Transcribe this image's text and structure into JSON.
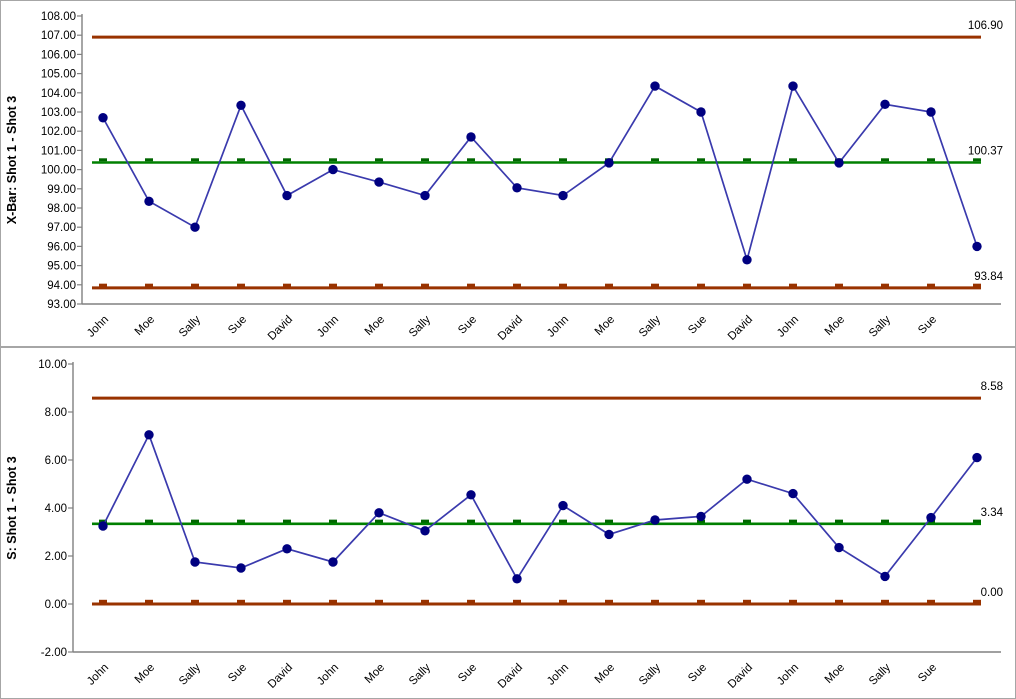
{
  "page": {
    "background": "#ffffff",
    "panel_border_color": "#a6a6a6",
    "colors": {
      "series_line": "#3a3aad",
      "marker": "#000080",
      "limit_line": "#993300",
      "limit_dash": "#993300",
      "center_line": "#008000",
      "center_dash": "#006600",
      "axis": "#808080",
      "text": "#000000"
    }
  },
  "chart_data": [
    {
      "type": "line",
      "name": "xbar-control-chart",
      "title": "X-Bar: Shot 1 - Shot 3",
      "ylabel": "X-Bar: Shot 1 - Shot 3",
      "xlabel": "",
      "legend": "none",
      "grid": false,
      "categories": [
        "John",
        "Moe",
        "Sally",
        "Sue",
        "David",
        "John",
        "Moe",
        "Sally",
        "Sue",
        "David",
        "John",
        "Moe",
        "Sally",
        "Sue",
        "David",
        "John",
        "Moe",
        "Sally",
        "Sue",
        ""
      ],
      "values": [
        102.7,
        98.35,
        97.0,
        103.35,
        98.65,
        100.0,
        99.35,
        98.65,
        101.7,
        99.05,
        98.65,
        100.35,
        104.35,
        103.0,
        95.3,
        104.35,
        100.35,
        103.4,
        103.0,
        96.0
      ],
      "ucl": 106.9,
      "center": 100.37,
      "lcl": 93.84,
      "ucl_label": "106.90",
      "center_label": "100.37",
      "lcl_label": "93.84",
      "ylim": [
        93,
        108
      ],
      "ytick_step": 1,
      "yticks": [
        "108.00",
        "107.00",
        "106.00",
        "105.00",
        "104.00",
        "103.00",
        "102.00",
        "101.00",
        "100.00",
        "99.00",
        "98.00",
        "97.00",
        "96.00",
        "95.00",
        "94.00",
        "93.00"
      ]
    },
    {
      "type": "line",
      "name": "s-control-chart",
      "title": "S: Shot 1 - Shot 3",
      "ylabel": "S: Shot 1 - Shot 3",
      "xlabel": "",
      "legend": "none",
      "grid": false,
      "categories": [
        "John",
        "Moe",
        "Sally",
        "Sue",
        "David",
        "John",
        "Moe",
        "Sally",
        "Sue",
        "David",
        "John",
        "Moe",
        "Sally",
        "Sue",
        "David",
        "John",
        "Moe",
        "Sally",
        "Sue",
        ""
      ],
      "values": [
        3.25,
        7.05,
        1.75,
        1.5,
        2.3,
        1.75,
        3.8,
        3.05,
        4.55,
        1.05,
        4.1,
        2.9,
        3.5,
        3.65,
        5.2,
        4.6,
        2.35,
        1.15,
        3.6,
        6.1
      ],
      "ucl": 8.58,
      "center": 3.34,
      "lcl": 0.0,
      "ucl_label": "8.58",
      "center_label": "3.34",
      "lcl_label": "0.00",
      "ylim": [
        -2,
        10
      ],
      "ytick_step": 2,
      "yticks": [
        "10.00",
        "8.00",
        "6.00",
        "4.00",
        "2.00",
        "0.00",
        "-2.00"
      ]
    }
  ]
}
